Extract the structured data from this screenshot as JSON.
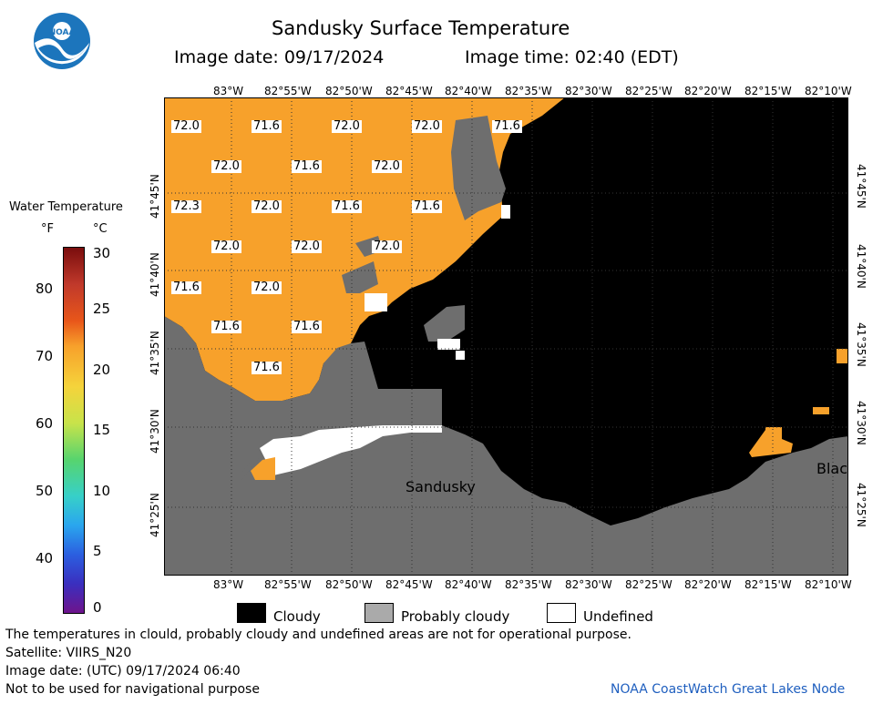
{
  "header": {
    "title": "Sandusky Surface Temperature",
    "image_date": "Image date: 09/17/2024",
    "image_time": "Image time: 02:40 (EDT)"
  },
  "logo": {
    "text": "NOAA",
    "color": "#1c75bc"
  },
  "lon_ticks": [
    "83°W",
    "82°55'W",
    "82°50'W",
    "82°45'W",
    "82°40'W",
    "82°35'W",
    "82°30'W",
    "82°25'W",
    "82°20'W",
    "82°15'W",
    "82°10'W"
  ],
  "lat_ticks": [
    "41°45'N",
    "41°40'N",
    "41°35'N",
    "41°30'N",
    "41°25'N"
  ],
  "scale": {
    "title": "Water Temperature",
    "unit_f": "°F",
    "unit_c": "°C",
    "f_labels": [
      "80",
      "70",
      "60",
      "50",
      "40"
    ],
    "c_labels": [
      "30",
      "25",
      "20",
      "15",
      "10",
      "5",
      "0"
    ]
  },
  "map": {
    "colors": {
      "water_72f": "#f7a12b",
      "cloudy": "#000000",
      "probably_cloudy": "#6e6e6e",
      "undefined": "#ffffff"
    },
    "temps": [
      {
        "v": "72.0"
      },
      {
        "v": "71.6"
      },
      {
        "v": "72.0"
      },
      {
        "v": "72.0"
      },
      {
        "v": "71.6"
      },
      {
        "v": "72.0"
      },
      {
        "v": "71.6"
      },
      {
        "v": "72.0"
      },
      {
        "v": "72.3"
      },
      {
        "v": "72.0"
      },
      {
        "v": "71.6"
      },
      {
        "v": "71.6"
      },
      {
        "v": "72.0"
      },
      {
        "v": "72.0"
      },
      {
        "v": "72.0"
      },
      {
        "v": "71.6"
      },
      {
        "v": "72.0"
      },
      {
        "v": "71.6"
      },
      {
        "v": "71.6"
      },
      {
        "v": "71.6"
      }
    ],
    "cities": {
      "sandusky": "Sandusky",
      "blac": "Blac"
    }
  },
  "legend": {
    "cloudy": "Cloudy",
    "probably_cloudy": "Probably cloudy",
    "undefined": "Undefined"
  },
  "footer": {
    "line1": "The temperatures in clould, probably cloudy and undefined areas are not for operational purpose.",
    "line2": "Satellite: VIIRS_N20",
    "line3": "Image date: (UTC) 09/17/2024  06:40",
    "line4": "Not to be used for navigational purpose",
    "credit": "NOAA CoastWatch Great Lakes Node"
  }
}
